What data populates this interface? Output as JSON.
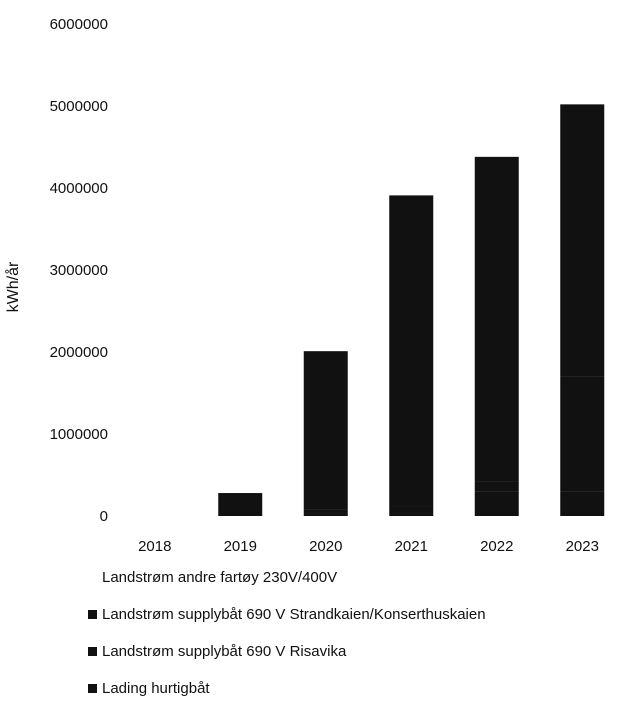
{
  "chart_data": {
    "type": "bar",
    "stacked": true,
    "title": "",
    "xlabel": "",
    "ylabel": "kWh/år",
    "ylim": [
      0,
      6000000
    ],
    "yticks": [
      "0",
      "1000000",
      "2000000",
      "3000000",
      "4000000",
      "5000000",
      "6000000"
    ],
    "categories": [
      "2018",
      "2019",
      "2020",
      "2021",
      "2022",
      "2023"
    ],
    "series": [
      {
        "name": "Landstrøm andre fartøy 230V/400V",
        "values": [
          0,
          0,
          0,
          0,
          0,
          0
        ],
        "color": "#111111",
        "swatch": false
      },
      {
        "name": "Landstrøm supplybåt 690 V Strandkaien/Konserthuskaien",
        "values": [
          0,
          0,
          30000,
          30000,
          300000,
          300000
        ],
        "color": "#111111",
        "swatch": true
      },
      {
        "name": "Landstrøm supplybåt 690 V Risavika",
        "values": [
          0,
          0,
          50000,
          80000,
          120000,
          1400000
        ],
        "color": "#111111",
        "swatch": true
      },
      {
        "name": "Lading hurtigbåt",
        "values": [
          0,
          280000,
          1930000,
          3800000,
          3960000,
          3320000
        ],
        "color": "#111111",
        "swatch": true
      }
    ],
    "legend_position": "bottom",
    "grid": false
  }
}
